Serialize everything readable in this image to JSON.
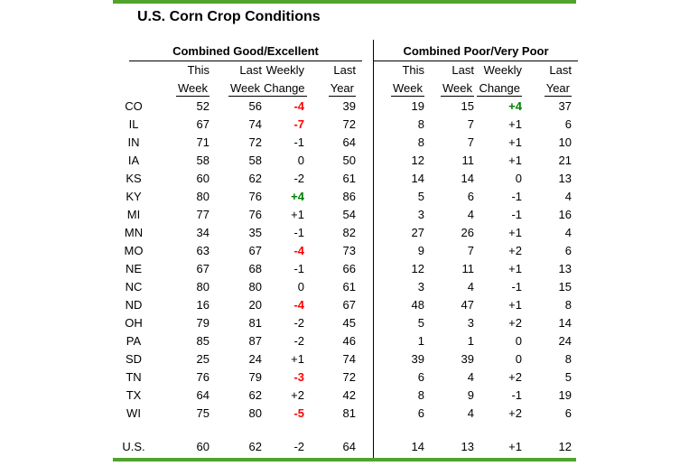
{
  "title": "U.S. Corn Crop Conditions",
  "colors": {
    "accent_bar": "#50a32c",
    "increase_green": "#008000",
    "decrease_red": "#ff0000",
    "text": "#000000"
  },
  "sections": {
    "left": {
      "header": "Combined Good/Excellent"
    },
    "right": {
      "header": "Combined Poor/Very Poor"
    }
  },
  "column_headers": {
    "line1": [
      "This",
      "Last",
      "Weekly",
      "Last"
    ],
    "line2": [
      "Week",
      "Week",
      "Change",
      "Year"
    ]
  },
  "chart_data": {
    "type": "table",
    "title": "U.S. Corn Crop Conditions",
    "sections": [
      "Combined Good/Excellent",
      "Combined Poor/Very Poor"
    ],
    "columns": [
      "This Week",
      "Last Week",
      "Weekly Change",
      "Last Year"
    ],
    "highlight_rule": "weekly change with absolute value >= 3 is bold: red if negative, green if positive",
    "rows": [
      {
        "state": "CO",
        "good_excellent": [
          52,
          56,
          "-4",
          39
        ],
        "poor_very_poor": [
          19,
          15,
          "+4",
          37
        ]
      },
      {
        "state": "IL",
        "good_excellent": [
          67,
          74,
          "-7",
          72
        ],
        "poor_very_poor": [
          8,
          7,
          "+1",
          6
        ]
      },
      {
        "state": "IN",
        "good_excellent": [
          71,
          72,
          "-1",
          64
        ],
        "poor_very_poor": [
          8,
          7,
          "+1",
          10
        ]
      },
      {
        "state": "IA",
        "good_excellent": [
          58,
          58,
          "0",
          50
        ],
        "poor_very_poor": [
          12,
          11,
          "+1",
          21
        ]
      },
      {
        "state": "KS",
        "good_excellent": [
          60,
          62,
          "-2",
          61
        ],
        "poor_very_poor": [
          14,
          14,
          "0",
          13
        ]
      },
      {
        "state": "KY",
        "good_excellent": [
          80,
          76,
          "+4",
          86
        ],
        "poor_very_poor": [
          5,
          6,
          "-1",
          4
        ]
      },
      {
        "state": "MI",
        "good_excellent": [
          77,
          76,
          "+1",
          54
        ],
        "poor_very_poor": [
          3,
          4,
          "-1",
          16
        ]
      },
      {
        "state": "MN",
        "good_excellent": [
          34,
          35,
          "-1",
          82
        ],
        "poor_very_poor": [
          27,
          26,
          "+1",
          4
        ]
      },
      {
        "state": "MO",
        "good_excellent": [
          63,
          67,
          "-4",
          73
        ],
        "poor_very_poor": [
          9,
          7,
          "+2",
          6
        ]
      },
      {
        "state": "NE",
        "good_excellent": [
          67,
          68,
          "-1",
          66
        ],
        "poor_very_poor": [
          12,
          11,
          "+1",
          13
        ]
      },
      {
        "state": "NC",
        "good_excellent": [
          80,
          80,
          "0",
          61
        ],
        "poor_very_poor": [
          3,
          4,
          "-1",
          15
        ]
      },
      {
        "state": "ND",
        "good_excellent": [
          16,
          20,
          "-4",
          67
        ],
        "poor_very_poor": [
          48,
          47,
          "+1",
          8
        ]
      },
      {
        "state": "OH",
        "good_excellent": [
          79,
          81,
          "-2",
          45
        ],
        "poor_very_poor": [
          5,
          3,
          "+2",
          14
        ]
      },
      {
        "state": "PA",
        "good_excellent": [
          85,
          87,
          "-2",
          46
        ],
        "poor_very_poor": [
          1,
          1,
          "0",
          24
        ]
      },
      {
        "state": "SD",
        "good_excellent": [
          25,
          24,
          "+1",
          74
        ],
        "poor_very_poor": [
          39,
          39,
          "0",
          8
        ]
      },
      {
        "state": "TN",
        "good_excellent": [
          76,
          79,
          "-3",
          72
        ],
        "poor_very_poor": [
          6,
          4,
          "+2",
          5
        ]
      },
      {
        "state": "TX",
        "good_excellent": [
          64,
          62,
          "+2",
          42
        ],
        "poor_very_poor": [
          8,
          9,
          "-1",
          19
        ]
      },
      {
        "state": "WI",
        "good_excellent": [
          75,
          80,
          "-5",
          81
        ],
        "poor_very_poor": [
          6,
          4,
          "+2",
          6
        ]
      }
    ],
    "summary": {
      "state": "U.S.",
      "good_excellent": [
        60,
        62,
        "-2",
        64
      ],
      "poor_very_poor": [
        14,
        13,
        "+1",
        12
      ]
    }
  }
}
